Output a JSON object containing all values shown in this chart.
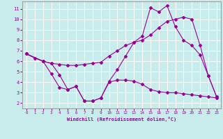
{
  "xlabel": "Windchill (Refroidissement éolien,°C)",
  "bg_color": "#c8ecec",
  "line_color": "#990099",
  "grid_color": "#ffffff",
  "spine_color": "#a0a0a0",
  "xlim": [
    -0.5,
    23.5
  ],
  "ylim": [
    1.5,
    11.7
  ],
  "xticks": [
    0,
    1,
    2,
    3,
    4,
    5,
    6,
    7,
    8,
    9,
    10,
    11,
    12,
    13,
    14,
    15,
    16,
    17,
    18,
    19,
    20,
    21,
    22,
    23
  ],
  "yticks": [
    2,
    3,
    4,
    5,
    6,
    7,
    8,
    9,
    10,
    11
  ],
  "line1_x": [
    0,
    1,
    2,
    3,
    4,
    5,
    6,
    7,
    8,
    9,
    10,
    11,
    12,
    13,
    14,
    15,
    16,
    17,
    18,
    19,
    20,
    21,
    22,
    23
  ],
  "line1_y": [
    6.7,
    6.3,
    6.0,
    4.8,
    3.5,
    3.3,
    3.6,
    2.2,
    2.2,
    2.5,
    4.0,
    4.2,
    4.2,
    4.1,
    3.8,
    3.3,
    3.1,
    3.0,
    3.0,
    2.9,
    2.8,
    2.7,
    2.6,
    2.5
  ],
  "line2_x": [
    0,
    2,
    3,
    4,
    5,
    6,
    7,
    8,
    9,
    10,
    11,
    12,
    13,
    14,
    15,
    16,
    17,
    18,
    19,
    20,
    21,
    22,
    23
  ],
  "line2_y": [
    6.7,
    6.0,
    5.8,
    5.7,
    5.6,
    5.6,
    5.7,
    5.8,
    5.9,
    6.5,
    7.0,
    7.5,
    7.8,
    8.0,
    8.5,
    9.2,
    9.8,
    10.0,
    10.2,
    10.0,
    7.5,
    4.6,
    2.6
  ],
  "line3_x": [
    0,
    2,
    3,
    4,
    5,
    6,
    7,
    8,
    9,
    10,
    11,
    12,
    13,
    14,
    15,
    16,
    17,
    18,
    19,
    20,
    21,
    22,
    23
  ],
  "line3_y": [
    6.7,
    6.0,
    5.8,
    4.7,
    3.3,
    3.6,
    2.2,
    2.2,
    2.5,
    4.1,
    5.2,
    6.5,
    7.8,
    8.4,
    11.1,
    10.7,
    11.3,
    9.3,
    8.0,
    7.5,
    6.6,
    4.6,
    2.6
  ]
}
